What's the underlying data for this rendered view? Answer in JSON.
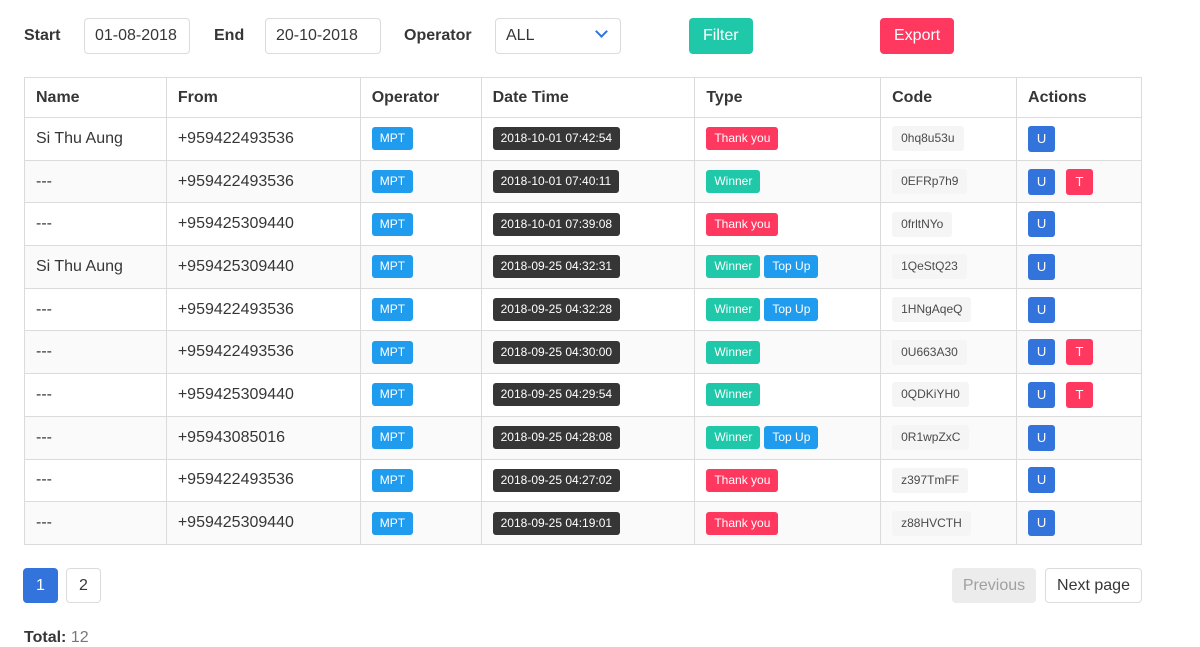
{
  "filters": {
    "start_label": "Start",
    "start_value": "01-08-2018",
    "end_label": "End",
    "end_value": "20-10-2018",
    "operator_label": "Operator",
    "operator_value": "ALL",
    "filter_button": "Filter",
    "export_button": "Export"
  },
  "table": {
    "headers": [
      "Name",
      "From",
      "Operator",
      "Date Time",
      "Type",
      "Code",
      "Actions"
    ],
    "rows": [
      {
        "name": "Si Thu Aung",
        "from": "+959422493536",
        "operator": "MPT",
        "datetime": "2018-10-01 07:42:54",
        "types": [
          "Thank you"
        ],
        "code": "0hq8u53u",
        "actions": [
          "U"
        ]
      },
      {
        "name": "---",
        "from": "+959422493536",
        "operator": "MPT",
        "datetime": "2018-10-01 07:40:11",
        "types": [
          "Winner"
        ],
        "code": "0EFRp7h9",
        "actions": [
          "U",
          "T"
        ]
      },
      {
        "name": "---",
        "from": "+959425309440",
        "operator": "MPT",
        "datetime": "2018-10-01 07:39:08",
        "types": [
          "Thank you"
        ],
        "code": "0frltNYo",
        "actions": [
          "U"
        ]
      },
      {
        "name": "Si Thu Aung",
        "from": "+959425309440",
        "operator": "MPT",
        "datetime": "2018-09-25 04:32:31",
        "types": [
          "Winner",
          "Top Up"
        ],
        "code": "1QeStQ23",
        "actions": [
          "U"
        ]
      },
      {
        "name": "---",
        "from": "+959422493536",
        "operator": "MPT",
        "datetime": "2018-09-25 04:32:28",
        "types": [
          "Winner",
          "Top Up"
        ],
        "code": "1HNgAqeQ",
        "actions": [
          "U"
        ]
      },
      {
        "name": "---",
        "from": "+959422493536",
        "operator": "MPT",
        "datetime": "2018-09-25 04:30:00",
        "types": [
          "Winner"
        ],
        "code": "0U663A30",
        "actions": [
          "U",
          "T"
        ]
      },
      {
        "name": "---",
        "from": "+959425309440",
        "operator": "MPT",
        "datetime": "2018-09-25 04:29:54",
        "types": [
          "Winner"
        ],
        "code": "0QDKiYH0",
        "actions": [
          "U",
          "T"
        ]
      },
      {
        "name": "---",
        "from": "+95943085016",
        "operator": "MPT",
        "datetime": "2018-09-25 04:28:08",
        "types": [
          "Winner",
          "Top Up"
        ],
        "code": "0R1wpZxC",
        "actions": [
          "U"
        ]
      },
      {
        "name": "---",
        "from": "+959422493536",
        "operator": "MPT",
        "datetime": "2018-09-25 04:27:02",
        "types": [
          "Thank you"
        ],
        "code": "z397TmFF",
        "actions": [
          "U"
        ]
      },
      {
        "name": "---",
        "from": "+959425309440",
        "operator": "MPT",
        "datetime": "2018-09-25 04:19:01",
        "types": [
          "Thank you"
        ],
        "code": "z88HVCTH",
        "actions": [
          "U"
        ]
      }
    ]
  },
  "pagination": {
    "pages": [
      "1",
      "2"
    ],
    "current": "1",
    "previous": "Previous",
    "next": "Next page"
  },
  "total": {
    "label": "Total:",
    "value": "12"
  },
  "colors": {
    "primary": "#3273dc",
    "danger": "#ff3860",
    "info": "#209cee",
    "success": "#1fc8a8",
    "dark": "#363636"
  }
}
